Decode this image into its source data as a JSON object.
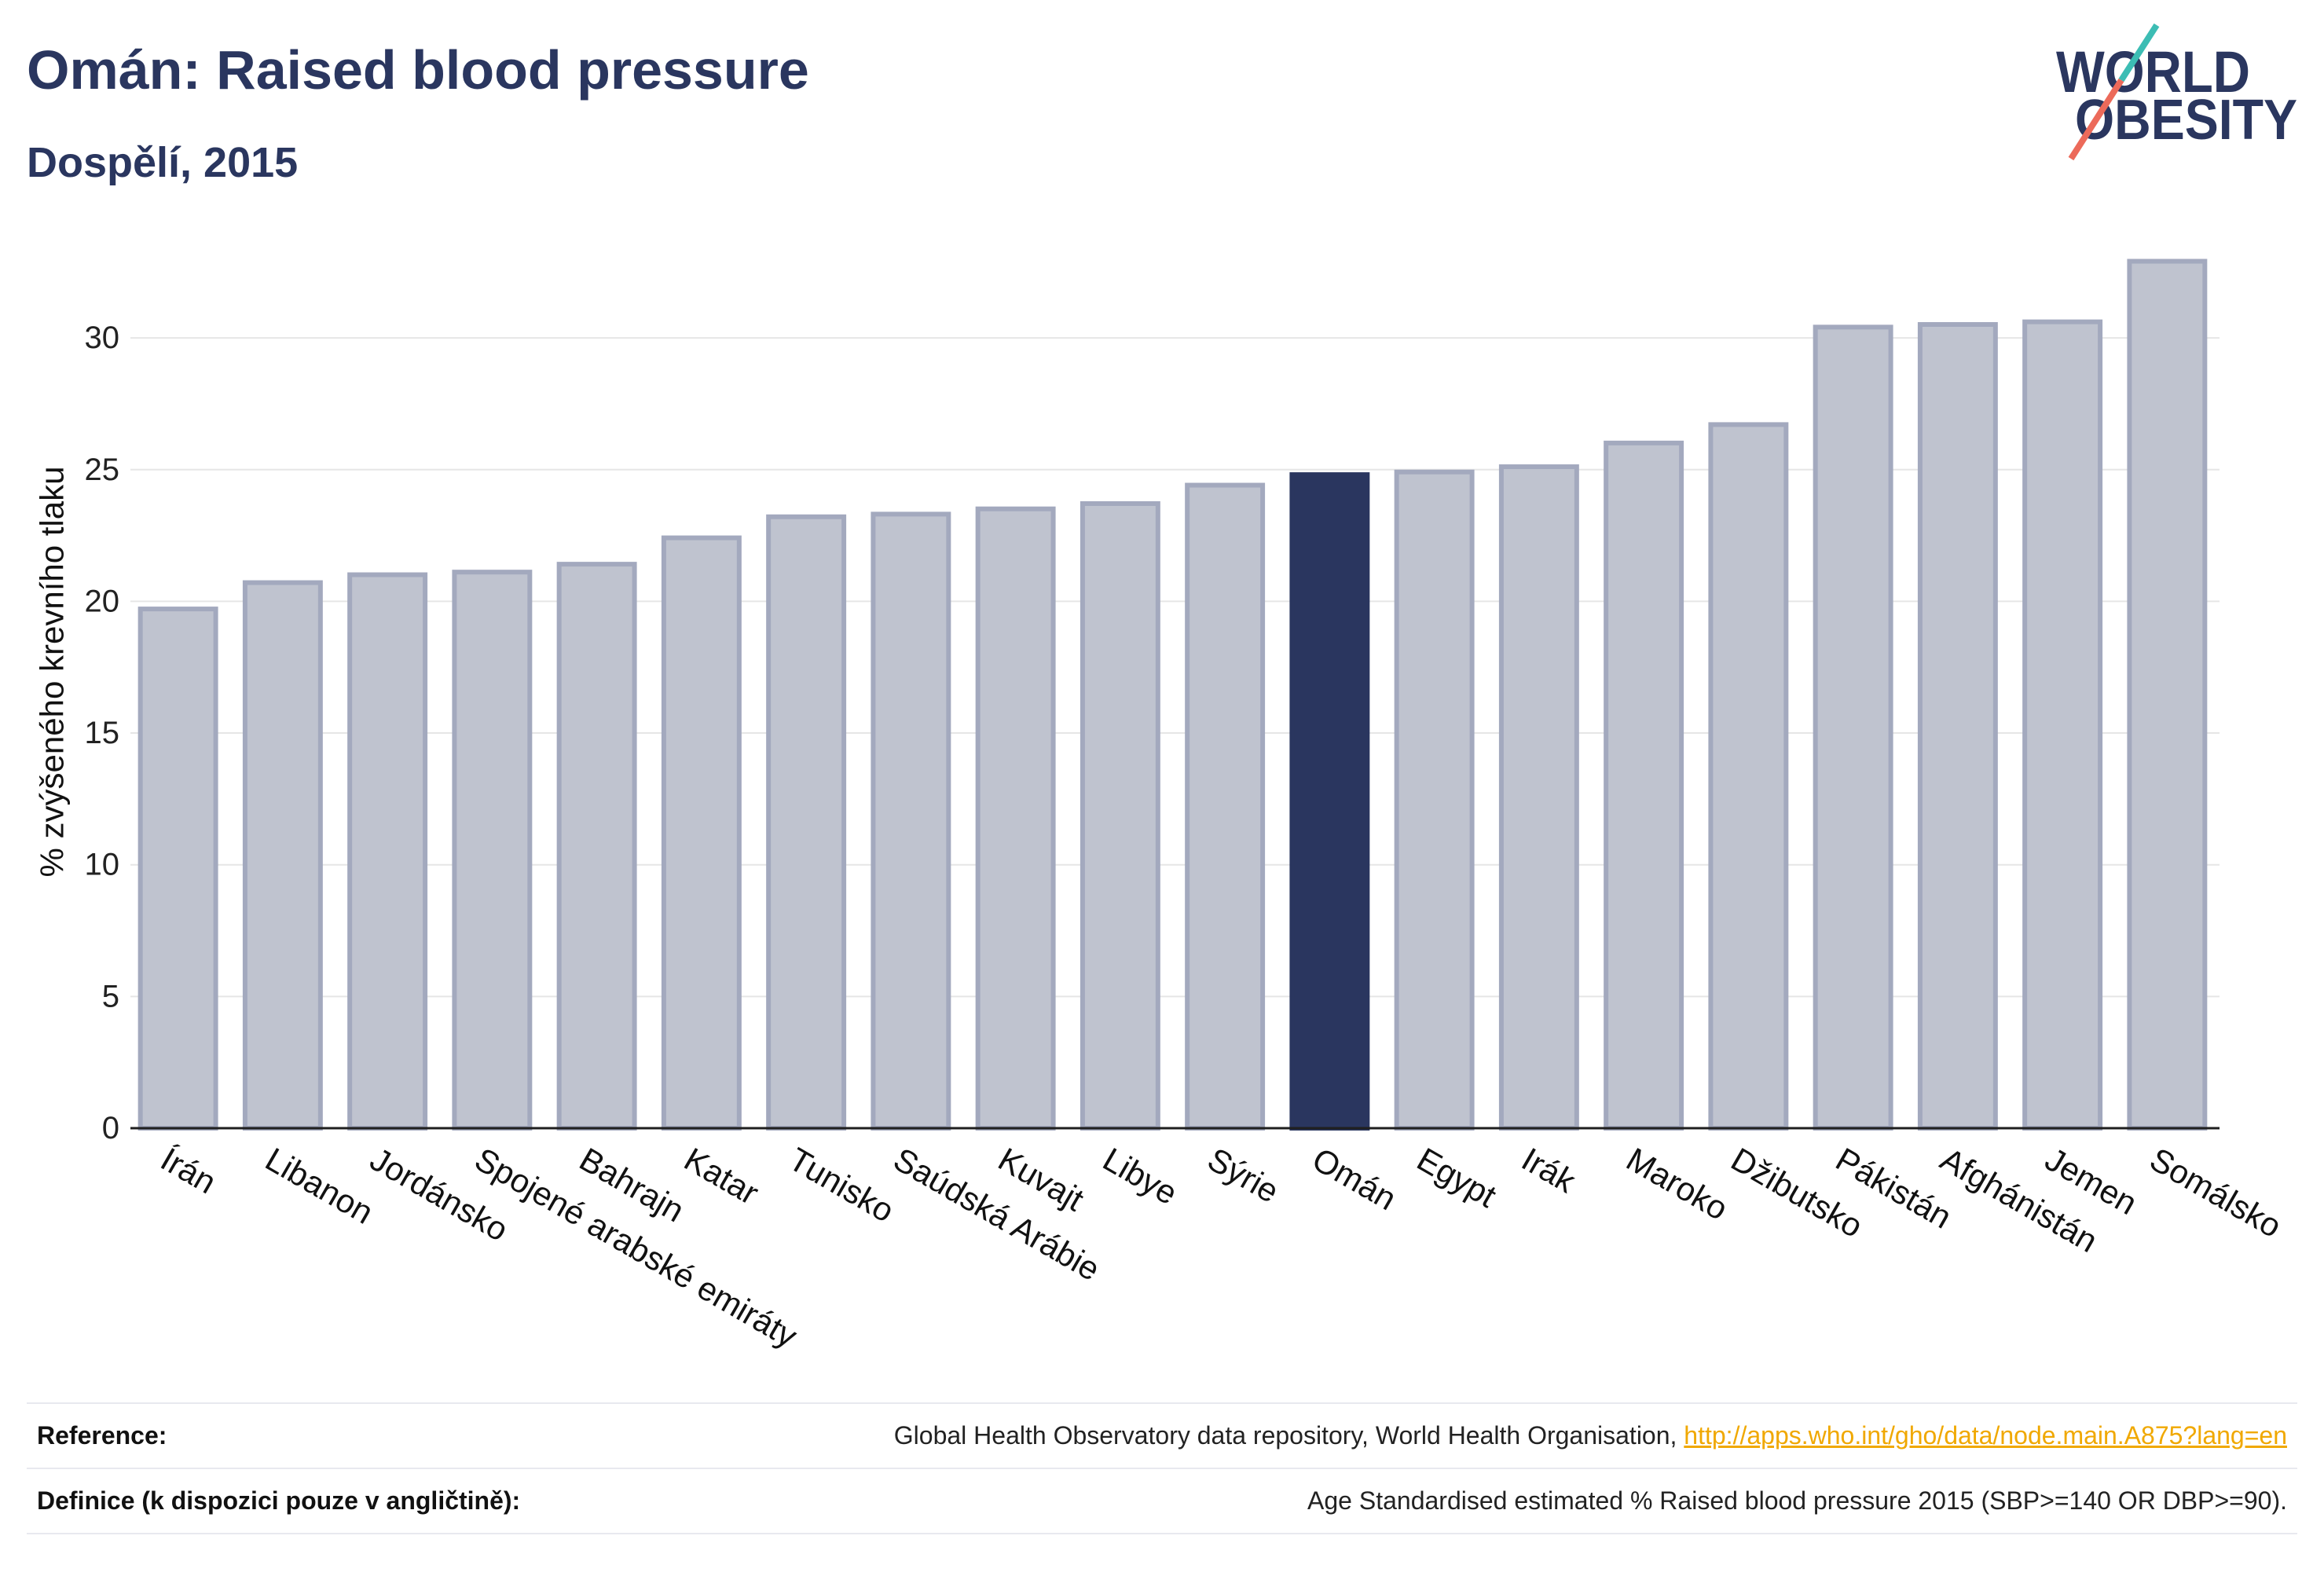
{
  "chart_data": {
    "type": "bar",
    "title": "Omán: Raised blood pressure",
    "subtitle": "Dospělí, 2015",
    "ylabel": "% zvýšeného krevního tlaku",
    "categories": [
      "Írán",
      "Libanon",
      "Jordánsko",
      "Spojené arabské emiráty",
      "Bahrajn",
      "Katar",
      "Tunisko",
      "Saúdská Arábie",
      "Kuvajt",
      "Libye",
      "Sýrie",
      "Omán",
      "Egypt",
      "Irák",
      "Maroko",
      "Džibutsko",
      "Pákistán",
      "Afghánistán",
      "Jemen",
      "Somálsko"
    ],
    "values": [
      19.8,
      20.8,
      21.1,
      21.2,
      21.5,
      22.5,
      23.3,
      23.4,
      23.6,
      23.8,
      24.5,
      24.9,
      25.0,
      25.2,
      26.1,
      26.8,
      30.5,
      30.6,
      30.7,
      33.0
    ],
    "bar_colors": [
      "#bfc3cf",
      "#bfc3cf",
      "#bfc3cf",
      "#bfc3cf",
      "#bfc3cf",
      "#bfc3cf",
      "#bfc3cf",
      "#bfc3cf",
      "#bfc3cf",
      "#bfc3cf",
      "#bfc3cf",
      "#2a365f",
      "#bfc3cf",
      "#bfc3cf",
      "#bfc3cf",
      "#bfc3cf",
      "#bfc3cf",
      "#bfc3cf",
      "#bfc3cf",
      "#bfc3cf"
    ],
    "ylim": [
      0,
      34
    ],
    "yticks": [
      0,
      5,
      10,
      15,
      20,
      25,
      30
    ],
    "grid": true,
    "legend": false,
    "colors": {
      "bar": "#bfc3cf",
      "bar_border": "#a3a9be",
      "highlight": "#2a365f",
      "grid": "#e6e6e6",
      "axis": "#1f1f1f"
    }
  },
  "logo": {
    "line1": "WORLD",
    "line2": "OBESITY",
    "text_color": "#2a365f",
    "slash_top_color": "#3cbdb4",
    "slash_bottom_color": "#ec6a5a"
  },
  "reference": {
    "source_label": "Reference:",
    "source_text": "Global Health Observatory data repository, World Health Organisation, ",
    "source_link": "http://apps.who.int/gho/data/node.main.A875?lang=en",
    "definition_label": "Definice (k dispozici pouze v angličtině):",
    "definition_text": "Age Standardised estimated % Raised blood pressure 2015 (SBP>=140 OR DBP>=90)."
  },
  "theme": {
    "navy": "#2a365f",
    "link": "#f0a800"
  }
}
